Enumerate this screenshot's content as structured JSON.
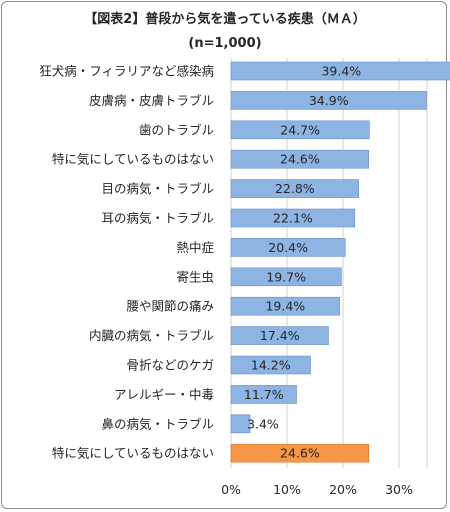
{
  "title": "【図表2】普段から気を遣っている疾患（ＭＡ）",
  "subtitle": "(n=1,000)",
  "colors": {
    "bar": "#8eb4e3",
    "bar_highlight": "#f79646",
    "bar_border": "#6a8fc5",
    "highlight_border": "#d9772e",
    "grid": "#d0d0d0"
  },
  "chart_data": {
    "type": "bar",
    "orientation": "horizontal",
    "title": "【図表2】普段から気を遣っている疾患（ＭＡ）",
    "subtitle": "(n=1,000)",
    "categories": [
      "狂犬病・フィラリアなど感染病",
      "皮膚病・皮膚トラブル",
      "歯のトラブル",
      "特に気にしているものはない",
      "目の病気・トラブル",
      "耳の病気・トラブル",
      "熱中症",
      "寄生虫",
      "腰や関節の痛み",
      "内臓の病気・トラブル",
      "骨折などのケガ",
      "アレルギー・中毒",
      "鼻の病気・トラブル",
      "特に気にしているものはない"
    ],
    "values": [
      39.4,
      34.9,
      24.7,
      24.6,
      22.8,
      22.1,
      20.4,
      19.7,
      19.4,
      17.4,
      14.2,
      11.7,
      3.4,
      24.6
    ],
    "value_labels": [
      "39.4%",
      "34.9%",
      "24.7%",
      "24.6%",
      "22.8%",
      "22.1%",
      "20.4%",
      "19.7%",
      "19.4%",
      "17.4%",
      "14.2%",
      "11.7%",
      "3.4%",
      "24.6%"
    ],
    "highlight_index": 13,
    "xticks": [
      "0%",
      "10%",
      "20%",
      "30%"
    ],
    "xtick_values": [
      0,
      10,
      20,
      30
    ],
    "xlim": [
      0,
      35
    ],
    "grid": true
  }
}
